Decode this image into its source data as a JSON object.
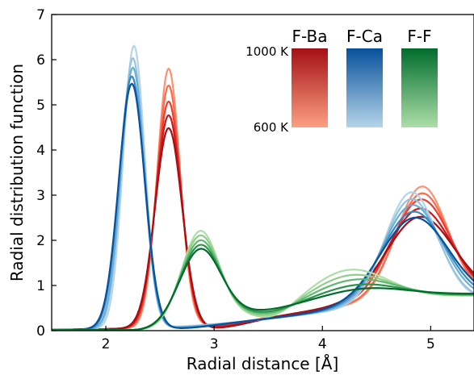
{
  "chart_data": {
    "type": "line",
    "title": "",
    "xlabel": "Radial distance [Å]",
    "ylabel": "Radial distribution function",
    "xlim": [
      1.5,
      5.4
    ],
    "ylim": [
      0,
      7
    ],
    "xticks": [
      2,
      3,
      4,
      5
    ],
    "yticks": [
      0,
      1,
      2,
      3,
      4,
      5,
      6,
      7
    ],
    "grid": false,
    "legend": {
      "placement": "top-right",
      "style": "color-gradient bars",
      "temp_high": "1000 K",
      "temp_low": "600 K",
      "groups": [
        {
          "name": "F-Ba",
          "color_high": "#a50f15",
          "color_low": "#fca082"
        },
        {
          "name": "F-Ca",
          "color_high": "#08519c",
          "color_low": "#b5d4e9"
        },
        {
          "name": "F-F",
          "color_high": "#006d2c",
          "color_low": "#addea8"
        }
      ]
    },
    "temperatures": [
      "600 K",
      "700 K",
      "800 K",
      "900 K",
      "1000 K"
    ],
    "series": [
      {
        "group": "F-Ba",
        "color": "#fc9272",
        "peaks": [
          [
            2.58,
            5.72,
            0.105
          ],
          [
            4.92,
            2.5,
            0.24
          ]
        ],
        "base": [
          0.4,
          0.78,
          3.3,
          0.55,
          0.2
        ]
      },
      {
        "group": "F-Ba",
        "color": "#fb6a4a",
        "peaks": [
          [
            2.58,
            5.35,
            0.11
          ],
          [
            4.92,
            2.35,
            0.25
          ]
        ],
        "base": [
          0.4,
          0.78,
          3.3,
          0.55,
          0.3
        ]
      },
      {
        "group": "F-Ba",
        "color": "#ef3b2c",
        "peaks": [
          [
            2.58,
            5.0,
            0.115
          ],
          [
            4.91,
            2.2,
            0.27
          ]
        ],
        "base": [
          0.4,
          0.8,
          3.3,
          0.55,
          0.42
        ]
      },
      {
        "group": "F-Ba",
        "color": "#cb181d",
        "peaks": [
          [
            2.58,
            4.7,
            0.12
          ],
          [
            4.9,
            2.0,
            0.29
          ]
        ],
        "base": [
          0.4,
          0.8,
          3.3,
          0.55,
          0.55
        ]
      },
      {
        "group": "F-Ba",
        "color": "#a50f15",
        "peaks": [
          [
            2.58,
            4.42,
            0.125
          ],
          [
            4.9,
            1.8,
            0.31
          ]
        ],
        "base": [
          0.4,
          0.82,
          3.3,
          0.55,
          0.68
        ]
      },
      {
        "group": "F-Ca",
        "color": "#b5d4e9",
        "peaks": [
          [
            2.26,
            6.25,
            0.1
          ],
          [
            4.82,
            2.45,
            0.24
          ]
        ],
        "base": [
          0.25,
          0.72,
          3.0,
          0.6,
          0.1
        ]
      },
      {
        "group": "F-Ca",
        "color": "#93c3df",
        "peaks": [
          [
            2.25,
            5.98,
            0.105
          ],
          [
            4.82,
            2.3,
            0.25
          ]
        ],
        "base": [
          0.25,
          0.72,
          3.0,
          0.6,
          0.2
        ]
      },
      {
        "group": "F-Ca",
        "color": "#6aaed6",
        "peaks": [
          [
            2.25,
            5.77,
            0.11
          ],
          [
            4.83,
            2.15,
            0.27
          ]
        ],
        "base": [
          0.25,
          0.74,
          3.0,
          0.6,
          0.3
        ]
      },
      {
        "group": "F-Ca",
        "color": "#3787c0",
        "peaks": [
          [
            2.24,
            5.58,
            0.115
          ],
          [
            4.84,
            2.0,
            0.29
          ]
        ],
        "base": [
          0.25,
          0.74,
          3.0,
          0.6,
          0.42
        ]
      },
      {
        "group": "F-Ca",
        "color": "#08519c",
        "peaks": [
          [
            2.24,
            5.42,
            0.12
          ],
          [
            4.85,
            1.85,
            0.31
          ]
        ],
        "base": [
          0.25,
          0.76,
          3.0,
          0.6,
          0.52
        ]
      },
      {
        "group": "F-F",
        "color": "#addea8",
        "peaks": [
          [
            2.87,
            1.95,
            0.17
          ],
          [
            4.25,
            0.72,
            0.35
          ],
          [
            3.55,
            -0.22,
            0.18
          ]
        ],
        "base": [
          0.35,
          0.8,
          2.6,
          0.3,
          0.85
        ]
      },
      {
        "group": "F-F",
        "color": "#8ed08b",
        "peaks": [
          [
            2.87,
            1.85,
            0.175
          ],
          [
            4.27,
            0.6,
            0.36
          ],
          [
            3.55,
            -0.17,
            0.18
          ]
        ],
        "base": [
          0.35,
          0.8,
          2.6,
          0.3,
          0.86
        ]
      },
      {
        "group": "F-F",
        "color": "#5fb870",
        "peaks": [
          [
            2.87,
            1.74,
            0.18
          ],
          [
            4.3,
            0.48,
            0.37
          ],
          [
            3.55,
            -0.12,
            0.18
          ]
        ],
        "base": [
          0.35,
          0.82,
          2.6,
          0.3,
          0.87
        ]
      },
      {
        "group": "F-F",
        "color": "#2a924a",
        "peaks": [
          [
            2.87,
            1.64,
            0.185
          ],
          [
            4.33,
            0.36,
            0.38
          ],
          [
            3.55,
            -0.07,
            0.18
          ]
        ],
        "base": [
          0.35,
          0.82,
          2.6,
          0.3,
          0.88
        ]
      },
      {
        "group": "F-F",
        "color": "#006d2c",
        "peaks": [
          [
            2.87,
            1.55,
            0.19
          ],
          [
            4.36,
            0.25,
            0.4
          ],
          [
            3.55,
            -0.02,
            0.18
          ]
        ],
        "base": [
          0.35,
          0.84,
          2.6,
          0.3,
          0.9
        ]
      }
    ]
  }
}
